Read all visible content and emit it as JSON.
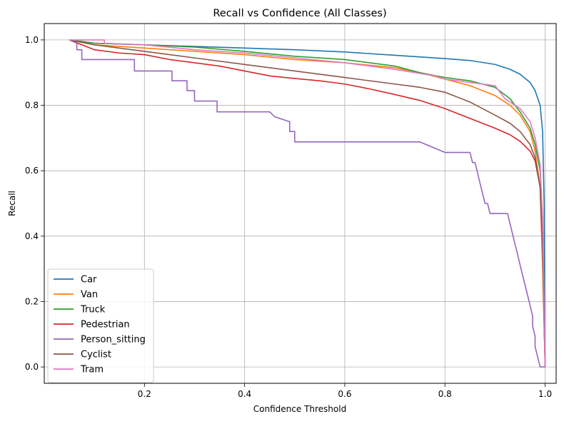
{
  "chart_data": {
    "type": "line",
    "title": "Recall vs Confidence (All Classes)",
    "xlabel": "Confidence Threshold",
    "ylabel": "Recall",
    "xlim": [
      0.0,
      1.022
    ],
    "ylim": [
      -0.05,
      1.05
    ],
    "xticks": [
      0.2,
      0.4,
      0.6,
      0.8,
      1.0
    ],
    "xtick_labels": [
      "0.2",
      "0.4",
      "0.6",
      "0.8",
      "1.0"
    ],
    "yticks": [
      0.0,
      0.2,
      0.4,
      0.6,
      0.8,
      1.0
    ],
    "ytick_labels": [
      "0.0",
      "0.2",
      "0.4",
      "0.6",
      "0.8",
      "1.0"
    ],
    "grid": true,
    "legend_position": "lower-left",
    "series": [
      {
        "name": "Car",
        "color": "#1f77b4",
        "x": [
          0.05,
          0.1,
          0.2,
          0.3,
          0.4,
          0.5,
          0.6,
          0.7,
          0.8,
          0.85,
          0.9,
          0.93,
          0.95,
          0.97,
          0.98,
          0.99,
          0.995,
          0.998,
          1.0
        ],
        "y": [
          1.0,
          0.99,
          0.985,
          0.98,
          0.975,
          0.97,
          0.963,
          0.953,
          0.943,
          0.937,
          0.925,
          0.91,
          0.895,
          0.87,
          0.845,
          0.8,
          0.72,
          0.5,
          0.0
        ]
      },
      {
        "name": "Van",
        "color": "#ff7f0e",
        "x": [
          0.05,
          0.1,
          0.2,
          0.3,
          0.4,
          0.5,
          0.6,
          0.7,
          0.75,
          0.8,
          0.85,
          0.9,
          0.93,
          0.95,
          0.97,
          0.98,
          0.99,
          0.995,
          1.0
        ],
        "y": [
          1.0,
          0.985,
          0.975,
          0.965,
          0.955,
          0.94,
          0.93,
          0.915,
          0.9,
          0.88,
          0.86,
          0.83,
          0.8,
          0.77,
          0.72,
          0.66,
          0.55,
          0.3,
          0.0
        ]
      },
      {
        "name": "Truck",
        "color": "#2ca02c",
        "x": [
          0.05,
          0.1,
          0.2,
          0.3,
          0.4,
          0.5,
          0.6,
          0.7,
          0.75,
          0.8,
          0.85,
          0.9,
          0.93,
          0.95,
          0.97,
          0.98,
          0.99,
          0.995,
          1.0
        ],
        "y": [
          1.0,
          0.99,
          0.985,
          0.978,
          0.965,
          0.95,
          0.94,
          0.92,
          0.9,
          0.885,
          0.875,
          0.855,
          0.82,
          0.78,
          0.73,
          0.68,
          0.6,
          0.45,
          0.0
        ]
      },
      {
        "name": "Pedestrian",
        "color": "#d62728",
        "x": [
          0.05,
          0.1,
          0.15,
          0.2,
          0.25,
          0.3,
          0.35,
          0.4,
          0.45,
          0.5,
          0.55,
          0.6,
          0.65,
          0.7,
          0.75,
          0.8,
          0.85,
          0.9,
          0.93,
          0.95,
          0.97,
          0.98,
          0.99,
          0.995,
          1.0
        ],
        "y": [
          1.0,
          0.97,
          0.96,
          0.955,
          0.94,
          0.93,
          0.92,
          0.905,
          0.89,
          0.882,
          0.875,
          0.865,
          0.85,
          0.833,
          0.815,
          0.79,
          0.76,
          0.73,
          0.71,
          0.69,
          0.66,
          0.63,
          0.55,
          0.35,
          0.0
        ]
      },
      {
        "name": "Person_sitting",
        "color": "#9467bd",
        "x": [
          0.05,
          0.065,
          0.065,
          0.075,
          0.075,
          0.18,
          0.18,
          0.255,
          0.255,
          0.285,
          0.285,
          0.3,
          0.3,
          0.345,
          0.345,
          0.45,
          0.46,
          0.49,
          0.49,
          0.5,
          0.5,
          0.6,
          0.75,
          0.8,
          0.85,
          0.855,
          0.86,
          0.865,
          0.87,
          0.875,
          0.88,
          0.885,
          0.89,
          0.895,
          0.9,
          0.925,
          0.93,
          0.935,
          0.94,
          0.945,
          0.95,
          0.955,
          0.96,
          0.965,
          0.97,
          0.975,
          0.975,
          0.98,
          0.98,
          0.985,
          0.99,
          1.0
        ],
        "y": [
          1.0,
          0.99,
          0.97,
          0.97,
          0.94,
          0.94,
          0.905,
          0.905,
          0.875,
          0.875,
          0.845,
          0.845,
          0.813,
          0.813,
          0.78,
          0.78,
          0.765,
          0.75,
          0.72,
          0.72,
          0.688,
          0.688,
          0.688,
          0.656,
          0.656,
          0.625,
          0.625,
          0.594,
          0.562,
          0.531,
          0.5,
          0.5,
          0.469,
          0.469,
          0.469,
          0.469,
          0.438,
          0.406,
          0.375,
          0.344,
          0.312,
          0.281,
          0.25,
          0.219,
          0.188,
          0.156,
          0.125,
          0.094,
          0.062,
          0.031,
          0.0,
          0.0
        ]
      },
      {
        "name": "Cyclist",
        "color": "#8c564b",
        "x": [
          0.05,
          0.1,
          0.2,
          0.3,
          0.4,
          0.5,
          0.6,
          0.7,
          0.75,
          0.8,
          0.85,
          0.9,
          0.93,
          0.95,
          0.97,
          0.98,
          0.99,
          0.995,
          1.0
        ],
        "y": [
          1.0,
          0.985,
          0.965,
          0.945,
          0.925,
          0.905,
          0.885,
          0.865,
          0.855,
          0.84,
          0.81,
          0.77,
          0.745,
          0.72,
          0.68,
          0.64,
          0.55,
          0.35,
          0.0
        ]
      },
      {
        "name": "Tram",
        "color": "#e377c2",
        "x": [
          0.05,
          0.12,
          0.12,
          0.2,
          0.3,
          0.4,
          0.5,
          0.6,
          0.7,
          0.78,
          0.8,
          0.85,
          0.9,
          0.92,
          0.95,
          0.97,
          0.98,
          0.99,
          0.995,
          1.0
        ],
        "y": [
          1.0,
          1.0,
          0.99,
          0.985,
          0.97,
          0.96,
          0.945,
          0.93,
          0.91,
          0.89,
          0.88,
          0.87,
          0.86,
          0.82,
          0.79,
          0.75,
          0.7,
          0.62,
          0.45,
          0.0
        ]
      }
    ]
  }
}
